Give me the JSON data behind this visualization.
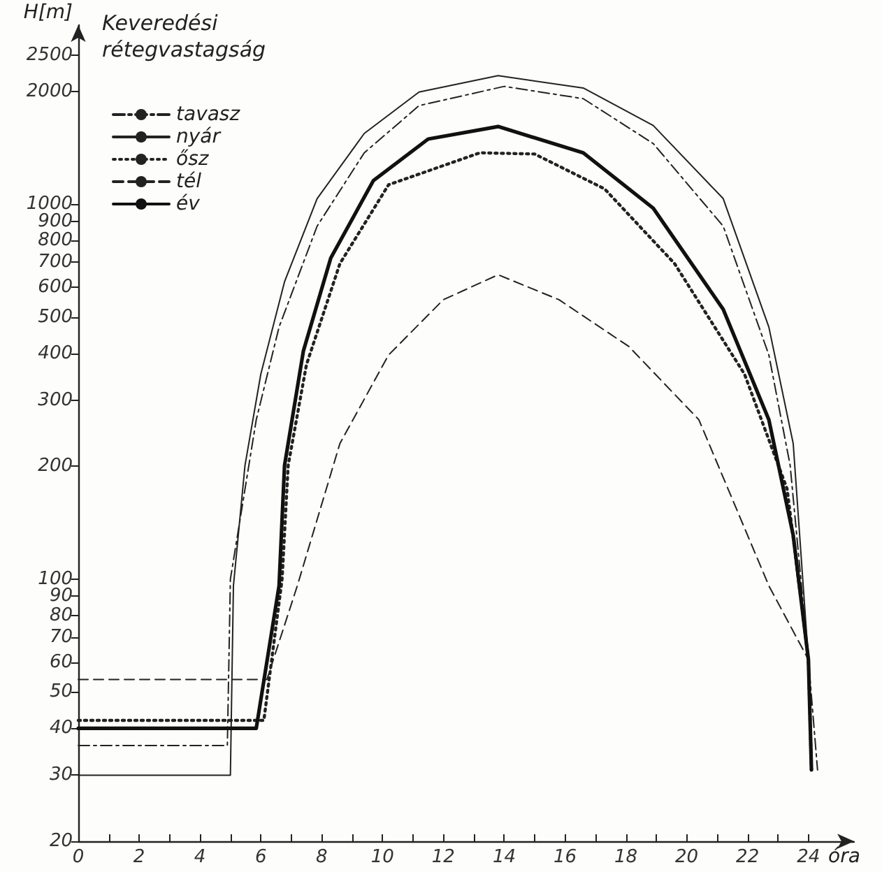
{
  "chart_data": {
    "type": "line",
    "title": "Keveredési rétegvastagság",
    "ylabel": "H[m]",
    "xlabel": "óra",
    "log": "y",
    "grid": false,
    "legend": "top left",
    "marker": "none",
    "xlim": [
      0,
      25.5
    ],
    "xticks": [
      0,
      {
        "value": 1,
        "label": null
      },
      2,
      {
        "value": 3,
        "label": null
      },
      4,
      {
        "value": 5,
        "label": null
      },
      6,
      {
        "value": 7,
        "label": null
      },
      8,
      {
        "value": 9,
        "label": null
      },
      10,
      {
        "value": 11,
        "label": null
      },
      12,
      {
        "value": 13,
        "label": null
      },
      14,
      {
        "value": 15,
        "label": null
      },
      16,
      {
        "value": 17,
        "label": null
      },
      18,
      {
        "value": 19,
        "label": null
      },
      20,
      {
        "value": 21,
        "label": null
      },
      22,
      {
        "value": 23,
        "label": null
      },
      24
    ],
    "ylim": [
      20,
      3000
    ],
    "yticks": [
      20,
      30,
      40,
      50,
      60,
      70,
      80,
      90,
      100,
      200,
      300,
      400,
      500,
      600,
      700,
      800,
      900,
      1000,
      2000,
      2500
    ],
    "series": [
      {
        "name": "tavasz",
        "color": "#222222",
        "line_style": "dashdot",
        "x": [
          0,
          4.9,
          5.0,
          5.85,
          6.6,
          7.85,
          9.4,
          11.2,
          14.0,
          16.6,
          18.9,
          21.2,
          22.7,
          23.4,
          24.0,
          24.3
        ],
        "values": [
          36,
          36,
          100,
          266,
          470,
          873,
          1370,
          1830,
          2060,
          1910,
          1450,
          873,
          396,
          201,
          61,
          31
        ]
      },
      {
        "name": "nyár",
        "color": "#222222",
        "line_style": "solid",
        "x": [
          0,
          5.0,
          5.1,
          5.48,
          6.0,
          6.78,
          7.85,
          9.4,
          11.2,
          13.8,
          16.6,
          18.9,
          21.2,
          22.7,
          23.5,
          24.0,
          24.1
        ],
        "values": [
          30,
          30,
          96,
          201,
          352,
          621,
          1034,
          1543,
          1990,
          2200,
          2040,
          1620,
          1034,
          470,
          230,
          61,
          31
        ]
      },
      {
        "name": "ősz",
        "color": "#222222",
        "line_style": "dotted",
        "x": [
          0,
          6.1,
          6.7,
          6.9,
          7.5,
          8.6,
          10.2,
          13.2,
          15.0,
          17.3,
          19.6,
          21.9,
          23.3,
          24.0,
          24.1
        ],
        "values": [
          42,
          42,
          100,
          201,
          373,
          694,
          1126,
          1370,
          1360,
          1098,
          694,
          352,
          174,
          61,
          31
        ]
      },
      {
        "name": "tél",
        "color": "#222222",
        "line_style": "dashed",
        "x": [
          0,
          6.2,
          7.2,
          8.6,
          10.2,
          12.0,
          13.8,
          15.8,
          18.1,
          20.4,
          22.7,
          24.0
        ],
        "values": [
          54,
          54,
          96,
          230,
          396,
          556,
          648,
          556,
          417,
          266,
          96,
          61
        ]
      },
      {
        "name": "év",
        "color": "#111111",
        "line_style": "solid",
        "x": [
          0,
          5.85,
          6.6,
          6.78,
          7.4,
          8.3,
          9.7,
          11.5,
          13.8,
          16.6,
          18.9,
          21.2,
          22.7,
          23.5,
          24.0,
          24.1
        ],
        "values": [
          40,
          40,
          96,
          201,
          406,
          718,
          1155,
          1491,
          1610,
          1370,
          975,
          524,
          266,
          131,
          61,
          31
        ]
      }
    ]
  }
}
